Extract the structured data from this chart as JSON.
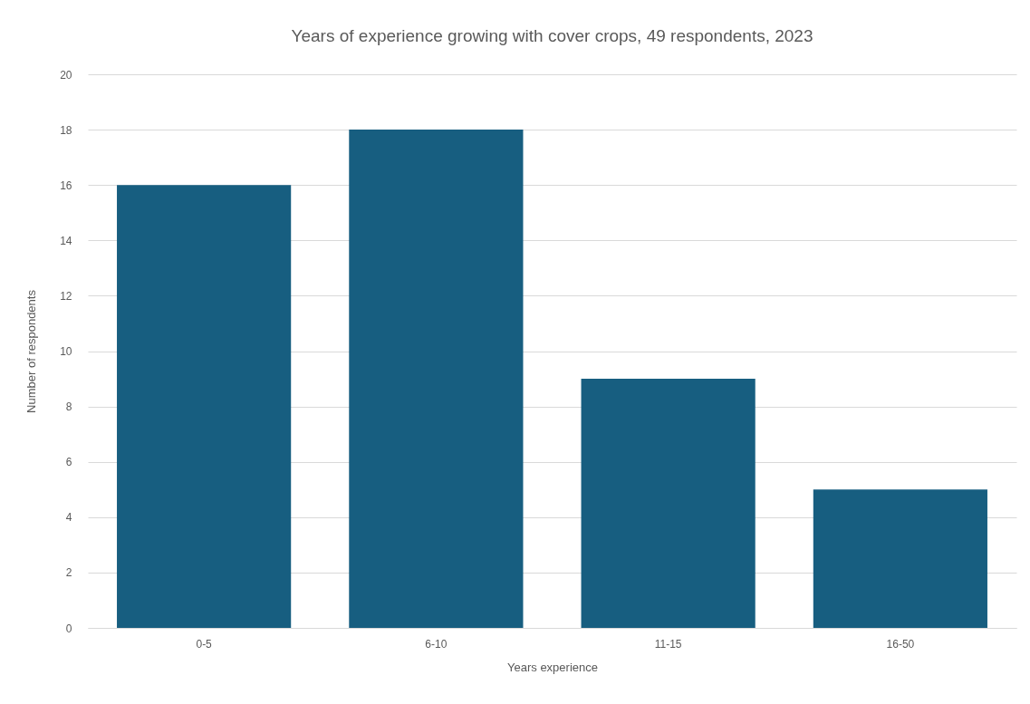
{
  "chart_data": {
    "type": "bar",
    "title": "Years of experience growing with cover crops, 49 respondents, 2023",
    "xlabel": "Years experience",
    "ylabel": "Number of respondents",
    "categories": [
      "0-5",
      "6-10",
      "11-15",
      "16-50"
    ],
    "values": [
      16,
      18,
      9,
      5
    ],
    "color": "#175e80",
    "ylim": [
      0,
      20
    ],
    "yticks": [
      0,
      2,
      4,
      6,
      8,
      10,
      12,
      14,
      16,
      18,
      20
    ],
    "grid": "y"
  }
}
